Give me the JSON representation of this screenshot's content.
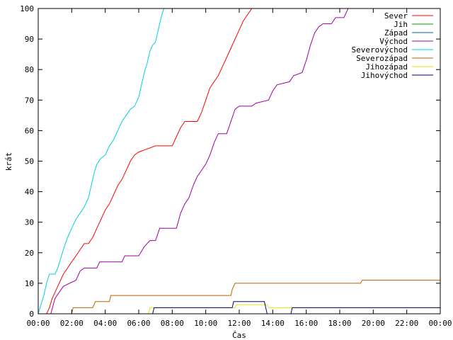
{
  "chart_data": {
    "type": "line",
    "xlabel": "Čas",
    "ylabel": "krát",
    "xlim": [
      "00:00",
      "24:00"
    ],
    "ylim": [
      0,
      100
    ],
    "grid": false,
    "legend_position": "top-right",
    "x_ticks": [
      "00:00",
      "02:00",
      "04:00",
      "06:00",
      "08:00",
      "10:00",
      "12:00",
      "14:00",
      "16:00",
      "18:00",
      "20:00",
      "22:00",
      "00:00"
    ],
    "y_ticks": [
      "0",
      "10",
      "20",
      "30",
      "40",
      "50",
      "60",
      "70",
      "80",
      "90",
      "100"
    ],
    "series": [
      {
        "name": "Sever",
        "color": "#ff0000",
        "points": [
          [
            "00:00",
            0
          ],
          [
            "00:30",
            0
          ],
          [
            "00:40",
            2
          ],
          [
            "00:50",
            5
          ],
          [
            "01:00",
            7
          ],
          [
            "01:15",
            10
          ],
          [
            "01:30",
            13
          ],
          [
            "01:45",
            15
          ],
          [
            "02:00",
            17
          ],
          [
            "02:15",
            19
          ],
          [
            "02:30",
            21
          ],
          [
            "02:45",
            23
          ],
          [
            "03:00",
            23
          ],
          [
            "03:15",
            25
          ],
          [
            "03:30",
            28
          ],
          [
            "03:45",
            31
          ],
          [
            "04:00",
            34
          ],
          [
            "04:15",
            36
          ],
          [
            "04:30",
            39
          ],
          [
            "04:45",
            42
          ],
          [
            "05:00",
            44
          ],
          [
            "05:15",
            47
          ],
          [
            "05:30",
            50
          ],
          [
            "05:45",
            52
          ],
          [
            "06:00",
            53
          ],
          [
            "06:30",
            54
          ],
          [
            "07:00",
            55
          ],
          [
            "08:00",
            55
          ],
          [
            "08:15",
            58
          ],
          [
            "08:30",
            61
          ],
          [
            "08:45",
            63
          ],
          [
            "09:30",
            63
          ],
          [
            "09:45",
            66
          ],
          [
            "10:00",
            70
          ],
          [
            "10:15",
            74
          ],
          [
            "10:30",
            76
          ],
          [
            "10:45",
            78
          ],
          [
            "11:00",
            81
          ],
          [
            "11:15",
            84
          ],
          [
            "11:30",
            87
          ],
          [
            "11:45",
            90
          ],
          [
            "12:00",
            93
          ],
          [
            "12:15",
            96
          ],
          [
            "12:30",
            98
          ],
          [
            "12:45",
            100
          ]
        ]
      },
      {
        "name": "Jih",
        "color": "#00a000",
        "points": []
      },
      {
        "name": "Západ",
        "color": "#0060ad",
        "points": []
      },
      {
        "name": "Východ",
        "color": "#a000a0",
        "points": [
          [
            "00:00",
            0
          ],
          [
            "00:45",
            0
          ],
          [
            "01:00",
            5
          ],
          [
            "01:15",
            7
          ],
          [
            "01:30",
            9
          ],
          [
            "02:15",
            11
          ],
          [
            "02:30",
            14
          ],
          [
            "02:45",
            15
          ],
          [
            "03:30",
            15
          ],
          [
            "03:40",
            17
          ],
          [
            "05:00",
            17
          ],
          [
            "05:10",
            19
          ],
          [
            "06:00",
            19
          ],
          [
            "06:20",
            22
          ],
          [
            "06:40",
            24
          ],
          [
            "07:00",
            24
          ],
          [
            "07:15",
            28
          ],
          [
            "08:15",
            28
          ],
          [
            "08:30",
            33
          ],
          [
            "08:45",
            36
          ],
          [
            "09:00",
            38
          ],
          [
            "09:15",
            42
          ],
          [
            "09:30",
            45
          ],
          [
            "09:45",
            47
          ],
          [
            "10:00",
            49
          ],
          [
            "10:15",
            52
          ],
          [
            "10:30",
            56
          ],
          [
            "10:45",
            59
          ],
          [
            "11:15",
            59
          ],
          [
            "11:30",
            63
          ],
          [
            "11:45",
            67
          ],
          [
            "12:00",
            68
          ],
          [
            "12:45",
            68
          ],
          [
            "13:00",
            69
          ],
          [
            "13:45",
            70
          ],
          [
            "14:00",
            73
          ],
          [
            "14:15",
            75
          ],
          [
            "15:00",
            76
          ],
          [
            "15:15",
            78
          ],
          [
            "15:45",
            79
          ],
          [
            "16:00",
            83
          ],
          [
            "16:15",
            88
          ],
          [
            "16:30",
            92
          ],
          [
            "16:45",
            94
          ],
          [
            "17:00",
            95
          ],
          [
            "17:30",
            95
          ],
          [
            "17:45",
            97
          ],
          [
            "18:15",
            97
          ],
          [
            "18:30",
            100
          ]
        ]
      },
      {
        "name": "Severovýchod",
        "color": "#00d0e0",
        "points": [
          [
            "00:00",
            0
          ],
          [
            "00:10",
            3
          ],
          [
            "00:20",
            6
          ],
          [
            "00:30",
            10
          ],
          [
            "00:40",
            13
          ],
          [
            "01:00",
            13
          ],
          [
            "01:10",
            15
          ],
          [
            "01:20",
            18
          ],
          [
            "01:30",
            21
          ],
          [
            "01:45",
            25
          ],
          [
            "02:00",
            28
          ],
          [
            "02:15",
            31
          ],
          [
            "02:30",
            33
          ],
          [
            "02:45",
            35
          ],
          [
            "03:00",
            38
          ],
          [
            "03:10",
            42
          ],
          [
            "03:20",
            46
          ],
          [
            "03:30",
            49
          ],
          [
            "03:45",
            51
          ],
          [
            "04:00",
            52
          ],
          [
            "04:15",
            55
          ],
          [
            "04:30",
            57
          ],
          [
            "04:45",
            60
          ],
          [
            "05:00",
            63
          ],
          [
            "05:15",
            65
          ],
          [
            "05:30",
            67
          ],
          [
            "05:45",
            68
          ],
          [
            "06:00",
            71
          ],
          [
            "06:10",
            75
          ],
          [
            "06:20",
            79
          ],
          [
            "06:30",
            82
          ],
          [
            "06:40",
            86
          ],
          [
            "06:50",
            88
          ],
          [
            "07:00",
            89
          ],
          [
            "07:10",
            93
          ],
          [
            "07:20",
            97
          ],
          [
            "07:30",
            100
          ]
        ]
      },
      {
        "name": "Severozápad",
        "color": "#c06000",
        "points": [
          [
            "00:00",
            0
          ],
          [
            "02:00",
            0
          ],
          [
            "02:05",
            2
          ],
          [
            "03:15",
            2
          ],
          [
            "03:25",
            4
          ],
          [
            "04:15",
            4
          ],
          [
            "04:20",
            6
          ],
          [
            "11:30",
            6
          ],
          [
            "11:35",
            8
          ],
          [
            "11:45",
            10
          ],
          [
            "19:15",
            10
          ],
          [
            "19:20",
            11
          ],
          [
            "24:00",
            11
          ]
        ]
      },
      {
        "name": "Jihozápad",
        "color": "#e6e600",
        "points": [
          [
            "00:00",
            0
          ],
          [
            "06:35",
            0
          ],
          [
            "06:40",
            2
          ],
          [
            "11:45",
            2
          ],
          [
            "11:50",
            3
          ],
          [
            "13:40",
            3
          ],
          [
            "13:45",
            2
          ],
          [
            "15:10",
            2
          ],
          [
            "15:15",
            2
          ],
          [
            "24:00",
            2
          ]
        ]
      },
      {
        "name": "Jihovýchod",
        "color": "#000080",
        "points": [
          [
            "00:00",
            0
          ],
          [
            "06:50",
            0
          ],
          [
            "06:55",
            2
          ],
          [
            "11:35",
            2
          ],
          [
            "11:40",
            4
          ],
          [
            "13:30",
            4
          ],
          [
            "13:40",
            0
          ],
          [
            "15:05",
            0
          ],
          [
            "15:10",
            2
          ],
          [
            "24:00",
            2
          ]
        ]
      }
    ]
  }
}
